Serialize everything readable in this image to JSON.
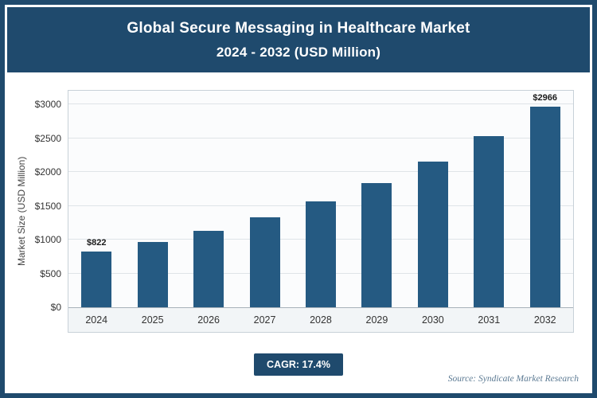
{
  "header": {
    "title_line1": "Global Secure Messaging in Healthcare Market",
    "title_line2": "2024 - 2032 (USD Million)"
  },
  "chart_data": {
    "type": "bar",
    "title": "Global Secure Messaging in Healthcare Market 2024 - 2032 (USD Million)",
    "categories": [
      "2024",
      "2025",
      "2026",
      "2027",
      "2028",
      "2029",
      "2030",
      "2031",
      "2032"
    ],
    "values": [
      822,
      965,
      1133,
      1330,
      1561,
      1833,
      2152,
      2526,
      2966
    ],
    "bar_labels": [
      "$822",
      null,
      null,
      null,
      null,
      null,
      null,
      null,
      "$2966"
    ],
    "xlabel": "",
    "ylabel": "Market Size (USD Million)",
    "ylim": [
      0,
      3000
    ],
    "ytick_step": 500,
    "ytick_labels": [
      "$0",
      "$500",
      "$1000",
      "$1500",
      "$2000",
      "$2500",
      "$3000"
    ],
    "grid": true,
    "legend": false,
    "bar_color": "#255a82"
  },
  "footer": {
    "cagr_label": "CAGR: 17.4%",
    "source": "Source: Syndicate Market Research"
  },
  "colors": {
    "accent": "#1f4a6d",
    "plot_bg": "#fbfcfd",
    "strip_bg": "#f2f5f7",
    "grid": "#dfe4e8",
    "box_border": "#c8d1d8"
  }
}
